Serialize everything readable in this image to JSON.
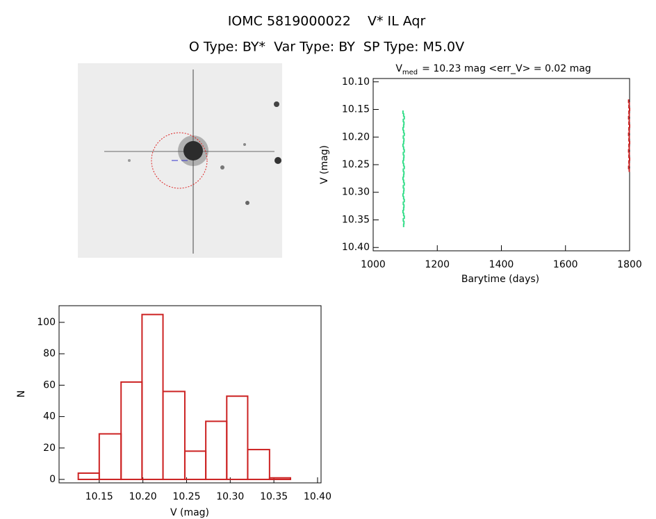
{
  "header": {
    "title": "IOMC 5819000022    V* IL Aqr",
    "subtitle": "O Type: BY*  Var Type: BY  SP Type: M5.0V"
  },
  "chart_data": [
    {
      "type": "scatter",
      "title_parts": [
        "V",
        "med",
        "= 10.23 mag <err_V> = 0.02 mag"
      ],
      "x_label": "Barytime (days)",
      "y_label": "V (mag)",
      "xlim": [
        1000,
        1800
      ],
      "xticks": [
        1000,
        1200,
        1400,
        1600,
        1800
      ],
      "ylim": [
        10.406,
        10.094
      ],
      "yticks": [
        {
          "value": 10.1,
          "label": "10.10"
        },
        10.15,
        {
          "value": 10.2,
          "label": "10.20"
        },
        10.25,
        {
          "value": 10.3,
          "label": "10.30"
        },
        10.35,
        {
          "value": 10.4,
          "label": "10.40"
        }
      ],
      "series": [
        {
          "color": "#33dd88",
          "x": [
            1093,
            1095,
            1097,
            1094,
            1096,
            1095,
            1093,
            1095,
            1097,
            1094,
            1096,
            1095,
            1093,
            1095,
            1097,
            1094,
            1096,
            1095,
            1093,
            1095,
            1097,
            1094,
            1096,
            1095,
            1093,
            1095,
            1097,
            1094,
            1096,
            1095,
            1093,
            1095,
            1097,
            1094,
            1096,
            1095,
            1093,
            1095,
            1097,
            1094,
            1096,
            1095
          ],
          "values": [
            10.155,
            10.16,
            10.165,
            10.17,
            10.175,
            10.18,
            10.185,
            10.19,
            10.195,
            10.2,
            10.205,
            10.21,
            10.215,
            10.22,
            10.225,
            10.23,
            10.235,
            10.24,
            10.245,
            10.25,
            10.255,
            10.26,
            10.265,
            10.27,
            10.275,
            10.28,
            10.285,
            10.29,
            10.295,
            10.3,
            10.305,
            10.31,
            10.315,
            10.32,
            10.325,
            10.33,
            10.335,
            10.34,
            10.345,
            10.35,
            10.355,
            10.36
          ]
        },
        {
          "color": "#cc2222",
          "x": [
            1797,
            1799,
            1798,
            1800,
            1798,
            1799,
            1797,
            1799,
            1798,
            1800,
            1798,
            1799,
            1797,
            1799,
            1798,
            1800,
            1798,
            1799,
            1797,
            1799,
            1798,
            1800,
            1798,
            1799,
            1797,
            1799
          ],
          "values": [
            10.135,
            10.14,
            10.145,
            10.15,
            10.155,
            10.16,
            10.165,
            10.17,
            10.175,
            10.18,
            10.185,
            10.19,
            10.195,
            10.2,
            10.205,
            10.21,
            10.215,
            10.22,
            10.225,
            10.23,
            10.235,
            10.24,
            10.245,
            10.25,
            10.255,
            10.26
          ]
        }
      ]
    },
    {
      "type": "histogram",
      "x_label": "V (mag)",
      "y_label": "N",
      "color": "#cc2222",
      "bins": [
        10.126,
        10.15,
        10.175,
        10.199,
        10.223,
        10.248,
        10.272,
        10.296,
        10.32,
        10.345,
        10.369
      ],
      "counts": [
        4,
        29,
        62,
        105,
        56,
        18,
        37,
        53,
        19,
        1
      ],
      "xlim": [
        10.104,
        10.404
      ],
      "xticks": [
        10.15,
        {
          "value": 10.2,
          "label": "10.20"
        },
        10.25,
        {
          "value": 10.3,
          "label": "10.30"
        },
        10.35,
        {
          "value": 10.4,
          "label": "10.40"
        }
      ],
      "ylim": [
        -2.2,
        110.6
      ],
      "yticks": [
        0,
        20,
        40,
        60,
        80,
        100
      ]
    }
  ]
}
